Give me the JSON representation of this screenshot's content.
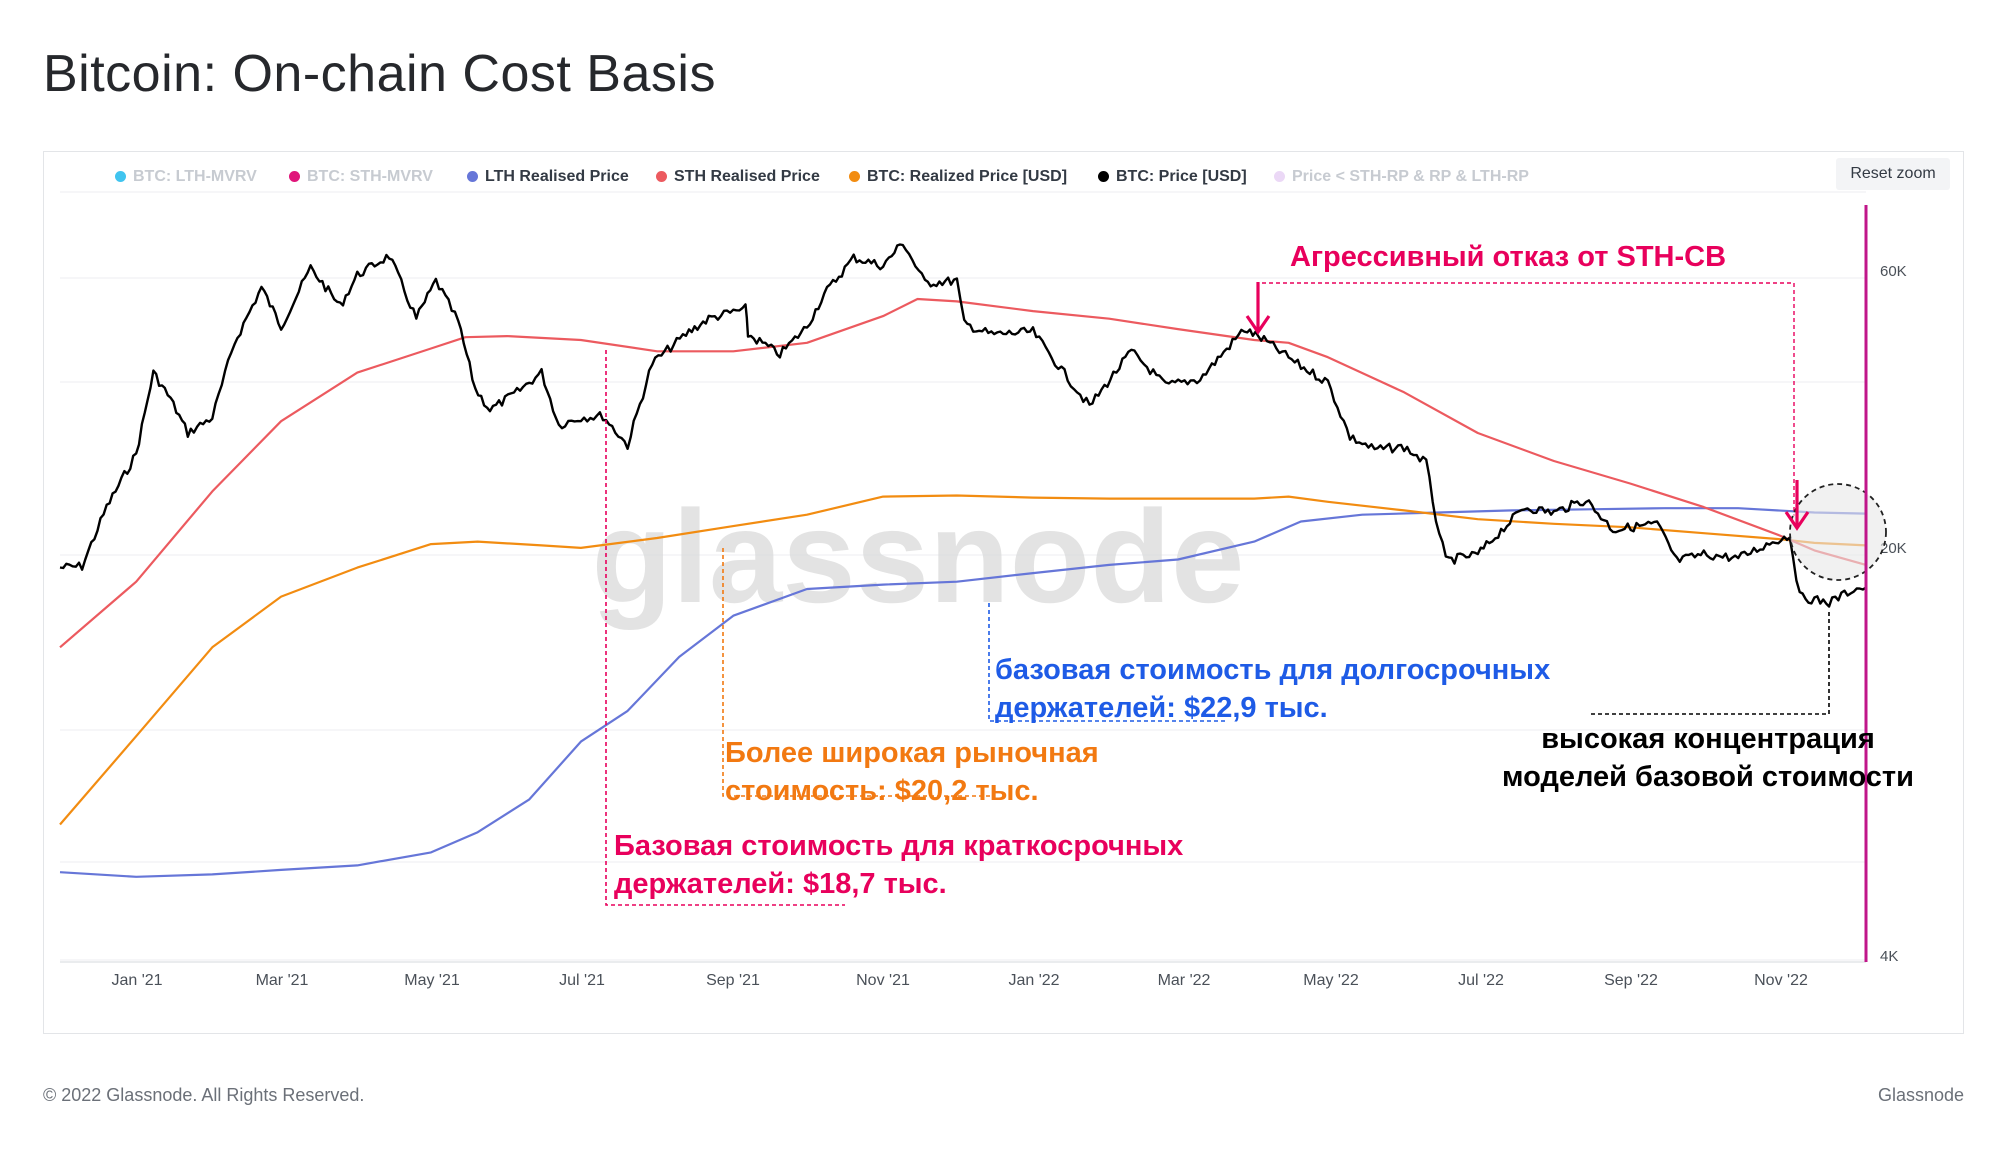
{
  "page": {
    "title": "Bitcoin: On-chain Cost Basis",
    "reset_zoom": "Reset zoom",
    "copyright": "© 2022 Glassnode. All Rights Reserved.",
    "brand": "Glassnode",
    "watermark": "glassnode"
  },
  "colors": {
    "lth_mvrv": "#40c4ef",
    "sth_mvrv": "#e0157a",
    "lth_rp": "#6676d8",
    "sth_rp": "#ec5a5f",
    "realized": "#f28c11",
    "price": "#000000",
    "band": "#ebd8f6",
    "annot_pink": "#e8005c",
    "annot_orange": "#f27911",
    "annot_blue": "#1e5be6",
    "annot_black": "#000000"
  },
  "chart_data": {
    "type": "line",
    "title": "Bitcoin: On-chain Cost Basis",
    "x_ticks": [
      "Jan '21",
      "Mar '21",
      "May '21",
      "Jul '21",
      "Sep '21",
      "Nov '21",
      "Jan '22",
      "Mar '22",
      "May '22",
      "Jul '22",
      "Sep '22",
      "Nov '22"
    ],
    "y_scale": "log",
    "y_ticks": [
      "60K",
      "20K",
      "4K"
    ],
    "ylim": [
      4000,
      90000
    ],
    "legend": [
      {
        "name": "BTC: LTH-MVRV",
        "color": "#40c4ef",
        "visible": false
      },
      {
        "name": "BTC: STH-MVRV",
        "color": "#e0157a",
        "visible": false
      },
      {
        "name": "LTH Realised Price",
        "color": "#6676d8",
        "visible": true
      },
      {
        "name": "STH Realised Price",
        "color": "#ec5a5f",
        "visible": true
      },
      {
        "name": "BTC: Realized Price [USD]",
        "color": "#f28c11",
        "visible": true
      },
      {
        "name": "BTC: Price [USD]",
        "color": "#000000",
        "visible": true
      },
      {
        "name": "Price < STH-RP & RP & LTH-RP",
        "color": "#ebd8f6",
        "visible": false
      }
    ],
    "legend_position": "top",
    "series": [
      {
        "name": "BTC: Price [USD]",
        "x": [
          "2020-12-01",
          "2020-12-10",
          "2020-12-20",
          "2021-01-01",
          "2021-01-08",
          "2021-01-15",
          "2021-01-22",
          "2021-02-01",
          "2021-02-10",
          "2021-02-21",
          "2021-03-01",
          "2021-03-13",
          "2021-03-25",
          "2021-04-01",
          "2021-04-14",
          "2021-04-25",
          "2021-05-03",
          "2021-05-12",
          "2021-05-19",
          "2021-05-25",
          "2021-06-05",
          "2021-06-15",
          "2021-06-22",
          "2021-07-01",
          "2021-07-10",
          "2021-07-20",
          "2021-07-30",
          "2021-08-14",
          "2021-08-22",
          "2021-09-06",
          "2021-09-07",
          "2021-09-20",
          "2021-10-01",
          "2021-10-08",
          "2021-10-20",
          "2021-11-01",
          "2021-11-09",
          "2021-11-18",
          "2021-12-01",
          "2021-12-04",
          "2021-12-15",
          "2022-01-01",
          "2022-01-10",
          "2022-01-24",
          "2022-02-10",
          "2022-02-24",
          "2022-03-10",
          "2022-03-28",
          "2022-04-05",
          "2022-04-20",
          "2022-05-01",
          "2022-05-10",
          "2022-05-20",
          "2022-06-01",
          "2022-06-10",
          "2022-06-14",
          "2022-06-18",
          "2022-07-01",
          "2022-07-20",
          "2022-08-01",
          "2022-08-14",
          "2022-08-25",
          "2022-09-12",
          "2022-09-20",
          "2022-10-01",
          "2022-10-15",
          "2022-10-29",
          "2022-11-05",
          "2022-11-09",
          "2022-11-21",
          "2022-12-01",
          "2022-12-06"
        ],
        "values": [
          18500,
          18600,
          23500,
          29000,
          40000,
          36000,
          31500,
          33500,
          45000,
          56000,
          48000,
          60500,
          52000,
          58800,
          63500,
          49500,
          57500,
          49000,
          37500,
          34500,
          37000,
          40000,
          32500,
          33500,
          33700,
          30000,
          41500,
          47000,
          49500,
          51500,
          46500,
          43000,
          48000,
          54500,
          63000,
          61000,
          67000,
          57000,
          57500,
          48500,
          46500,
          47000,
          41800,
          35000,
          43500,
          38000,
          39000,
          47500,
          45500,
          41000,
          38500,
          31000,
          29500,
          29800,
          28000,
          22500,
          19000,
          19500,
          23500,
          23000,
          24200,
          21500,
          22000,
          19000,
          19500,
          19200,
          20500,
          21000,
          16500,
          16100,
          17000,
          17100
        ]
      },
      {
        "name": "STH Realised Price",
        "x": [
          "2020-12-01",
          "2021-01-01",
          "2021-02-01",
          "2021-03-01",
          "2021-04-01",
          "2021-05-01",
          "2021-05-15",
          "2021-06-01",
          "2021-07-01",
          "2021-08-01",
          "2021-09-01",
          "2021-10-01",
          "2021-11-01",
          "2021-11-15",
          "2021-12-01",
          "2022-01-01",
          "2022-02-01",
          "2022-03-01",
          "2022-04-01",
          "2022-04-15",
          "2022-05-01",
          "2022-06-01",
          "2022-07-01",
          "2022-08-01",
          "2022-09-01",
          "2022-10-01",
          "2022-11-01",
          "2022-11-15",
          "2022-12-06"
        ],
        "values": [
          13500,
          17500,
          25000,
          33000,
          40000,
          44000,
          46000,
          46200,
          45500,
          43500,
          43500,
          45000,
          50000,
          53500,
          53000,
          51000,
          49500,
          47500,
          45500,
          45000,
          42500,
          37000,
          31500,
          28200,
          25800,
          23500,
          21000,
          19800,
          18700
        ]
      },
      {
        "name": "BTC: Realized Price [USD]",
        "x": [
          "2020-12-01",
          "2021-01-01",
          "2021-02-01",
          "2021-03-01",
          "2021-04-01",
          "2021-05-01",
          "2021-05-20",
          "2021-06-15",
          "2021-07-01",
          "2021-08-01",
          "2021-09-01",
          "2021-10-01",
          "2021-11-01",
          "2021-12-01",
          "2022-01-01",
          "2022-02-01",
          "2022-03-01",
          "2022-04-01",
          "2022-04-15",
          "2022-05-01",
          "2022-06-01",
          "2022-07-01",
          "2022-08-01",
          "2022-09-01",
          "2022-10-01",
          "2022-11-01",
          "2022-11-15",
          "2022-12-06"
        ],
        "values": [
          6700,
          9500,
          13500,
          16500,
          18500,
          20300,
          20500,
          20200,
          20000,
          20800,
          21800,
          22800,
          24500,
          24600,
          24400,
          24300,
          24300,
          24300,
          24500,
          24000,
          23200,
          22400,
          22000,
          21700,
          21200,
          20700,
          20400,
          20200
        ]
      },
      {
        "name": "LTH Realised Price",
        "x": [
          "2020-12-01",
          "2021-01-01",
          "2021-02-01",
          "2021-03-01",
          "2021-04-01",
          "2021-05-01",
          "2021-05-20",
          "2021-06-10",
          "2021-07-01",
          "2021-07-20",
          "2021-08-10",
          "2021-09-01",
          "2021-10-01",
          "2021-11-01",
          "2021-12-01",
          "2022-01-01",
          "2022-02-01",
          "2022-03-01",
          "2022-04-01",
          "2022-04-20",
          "2022-05-15",
          "2022-06-15",
          "2022-07-15",
          "2022-08-15",
          "2022-09-15",
          "2022-10-15",
          "2022-11-15",
          "2022-12-06"
        ],
        "values": [
          5550,
          5450,
          5500,
          5600,
          5700,
          6000,
          6500,
          7400,
          9300,
          10500,
          13000,
          15300,
          17000,
          17300,
          17500,
          18100,
          18700,
          19100,
          20500,
          22200,
          22800,
          23000,
          23200,
          23300,
          23400,
          23400,
          23000,
          22900
        ]
      }
    ],
    "annotations": [
      {
        "text": "Агрессивный отказ от STH-CB",
        "color": "#e8005c"
      },
      {
        "text": "Базовая стоимость для краткосрочных держателей: $18,7 тыс.",
        "color": "#e8005c"
      },
      {
        "text": "Более широкая рыночная стоимость: $20,2 тыс.",
        "color": "#f27911"
      },
      {
        "text": "базовая стоимость для долгосрочных держателей: $22,9 тыс.",
        "color": "#1e5be6"
      },
      {
        "text": "высокая концентрация моделей базовой стоимости",
        "color": "#000000"
      }
    ]
  },
  "annotations_text": {
    "rejection": "Агрессивный отказ от STH-CB",
    "sth_line1": "Базовая стоимость для краткосрочных",
    "sth_line2": "держателей: $18,7 тыс.",
    "rp_line1": "Более широкая рыночная",
    "rp_line2": "стоимость: $20,2 тыс.",
    "lth_line1": "базовая стоимость для долгосрочных",
    "lth_line2": "держателей: $22,9 тыс.",
    "conc_line1": "высокая концентрация",
    "conc_line2": "моделей базовой стоимости"
  }
}
